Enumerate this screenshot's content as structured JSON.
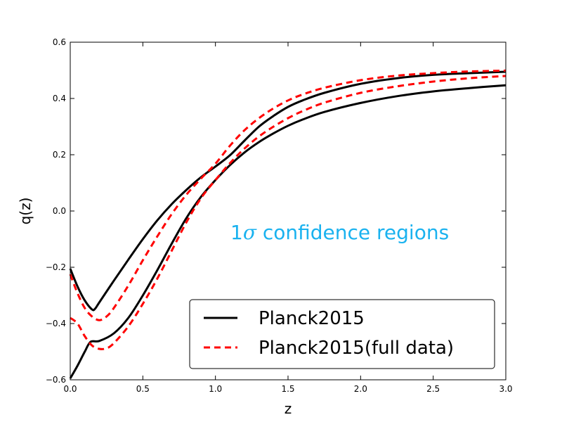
{
  "chart_data": {
    "type": "line",
    "title": "",
    "xlabel": "z",
    "ylabel": "q(z)",
    "xlim": [
      0.0,
      3.0
    ],
    "ylim": [
      -0.6,
      0.6
    ],
    "xticks": [
      0.0,
      0.5,
      1.0,
      1.5,
      2.0,
      2.5,
      3.0
    ],
    "xtick_labels": [
      "0.0",
      "0.5",
      "1.0",
      "1.5",
      "2.0",
      "2.5",
      "3.0"
    ],
    "yticks": [
      -0.6,
      -0.4,
      -0.2,
      0.0,
      0.2,
      0.4,
      0.6
    ],
    "ytick_labels": [
      "−0.6",
      "−0.4",
      "−0.2",
      "0.0",
      "0.2",
      "0.4",
      "0.6"
    ],
    "annotation": {
      "number": "1",
      "symbol": "σ",
      "text": " confidence regions",
      "color": "#1ab2ef"
    },
    "legend": {
      "position": "lower-right",
      "entries": [
        {
          "label": "Planck2015",
          "color": "#000000",
          "style": "solid"
        },
        {
          "label": "Planck2015(full data)",
          "color": "#ff0000",
          "style": "dashed"
        }
      ]
    },
    "series": [
      {
        "name": "Planck2015 upper",
        "color": "#000000",
        "style": "solid",
        "points": [
          [
            0.0,
            -0.205
          ],
          [
            0.05,
            -0.268
          ],
          [
            0.1,
            -0.318
          ],
          [
            0.15,
            -0.35
          ],
          [
            0.17,
            -0.348
          ],
          [
            0.2,
            -0.325
          ],
          [
            0.3,
            -0.248
          ],
          [
            0.4,
            -0.173
          ],
          [
            0.5,
            -0.1
          ],
          [
            0.6,
            -0.033
          ],
          [
            0.7,
            0.025
          ],
          [
            0.8,
            0.075
          ],
          [
            0.9,
            0.12
          ],
          [
            1.0,
            0.158
          ],
          [
            1.1,
            0.198
          ],
          [
            1.2,
            0.25
          ],
          [
            1.3,
            0.3
          ],
          [
            1.4,
            0.338
          ],
          [
            1.5,
            0.37
          ],
          [
            1.6,
            0.393
          ],
          [
            1.75,
            0.42
          ],
          [
            2.0,
            0.452
          ],
          [
            2.25,
            0.472
          ],
          [
            2.5,
            0.484
          ],
          [
            2.75,
            0.49
          ],
          [
            3.0,
            0.495
          ]
        ]
      },
      {
        "name": "Planck2015 lower",
        "color": "#000000",
        "style": "solid",
        "points": [
          [
            0.0,
            -0.595
          ],
          [
            0.05,
            -0.55
          ],
          [
            0.1,
            -0.5
          ],
          [
            0.14,
            -0.465
          ],
          [
            0.2,
            -0.462
          ],
          [
            0.3,
            -0.435
          ],
          [
            0.4,
            -0.38
          ],
          [
            0.5,
            -0.3
          ],
          [
            0.6,
            -0.21
          ],
          [
            0.7,
            -0.115
          ],
          [
            0.8,
            -0.025
          ],
          [
            0.9,
            0.05
          ],
          [
            1.0,
            0.11
          ],
          [
            1.1,
            0.163
          ],
          [
            1.2,
            0.208
          ],
          [
            1.3,
            0.245
          ],
          [
            1.4,
            0.276
          ],
          [
            1.5,
            0.303
          ],
          [
            1.6,
            0.325
          ],
          [
            1.75,
            0.352
          ],
          [
            2.0,
            0.384
          ],
          [
            2.25,
            0.408
          ],
          [
            2.5,
            0.425
          ],
          [
            2.75,
            0.437
          ],
          [
            3.0,
            0.447
          ]
        ]
      },
      {
        "name": "Planck2015(full data) upper",
        "color": "#ff0000",
        "style": "dashed",
        "points": [
          [
            0.0,
            -0.225
          ],
          [
            0.05,
            -0.292
          ],
          [
            0.1,
            -0.345
          ],
          [
            0.15,
            -0.375
          ],
          [
            0.2,
            -0.388
          ],
          [
            0.25,
            -0.375
          ],
          [
            0.3,
            -0.345
          ],
          [
            0.4,
            -0.265
          ],
          [
            0.5,
            -0.175
          ],
          [
            0.6,
            -0.09
          ],
          [
            0.7,
            -0.01
          ],
          [
            0.8,
            0.058
          ],
          [
            0.9,
            0.115
          ],
          [
            1.0,
            0.168
          ],
          [
            1.1,
            0.232
          ],
          [
            1.2,
            0.287
          ],
          [
            1.3,
            0.33
          ],
          [
            1.4,
            0.365
          ],
          [
            1.5,
            0.393
          ],
          [
            1.6,
            0.414
          ],
          [
            1.75,
            0.438
          ],
          [
            2.0,
            0.465
          ],
          [
            2.25,
            0.481
          ],
          [
            2.5,
            0.49
          ],
          [
            2.75,
            0.496
          ],
          [
            3.0,
            0.499
          ]
        ]
      },
      {
        "name": "Planck2015(full data) lower",
        "color": "#ff0000",
        "style": "dashed",
        "points": [
          [
            0.0,
            -0.38
          ],
          [
            0.05,
            -0.4
          ],
          [
            0.1,
            -0.445
          ],
          [
            0.15,
            -0.478
          ],
          [
            0.2,
            -0.49
          ],
          [
            0.25,
            -0.488
          ],
          [
            0.3,
            -0.47
          ],
          [
            0.4,
            -0.41
          ],
          [
            0.5,
            -0.33
          ],
          [
            0.6,
            -0.24
          ],
          [
            0.7,
            -0.14
          ],
          [
            0.8,
            -0.04
          ],
          [
            0.9,
            0.045
          ],
          [
            1.0,
            0.11
          ],
          [
            1.1,
            0.17
          ],
          [
            1.2,
            0.222
          ],
          [
            1.3,
            0.265
          ],
          [
            1.4,
            0.3
          ],
          [
            1.5,
            0.33
          ],
          [
            1.6,
            0.355
          ],
          [
            1.75,
            0.385
          ],
          [
            2.0,
            0.42
          ],
          [
            2.25,
            0.443
          ],
          [
            2.5,
            0.46
          ],
          [
            2.75,
            0.472
          ],
          [
            3.0,
            0.48
          ]
        ]
      }
    ]
  }
}
